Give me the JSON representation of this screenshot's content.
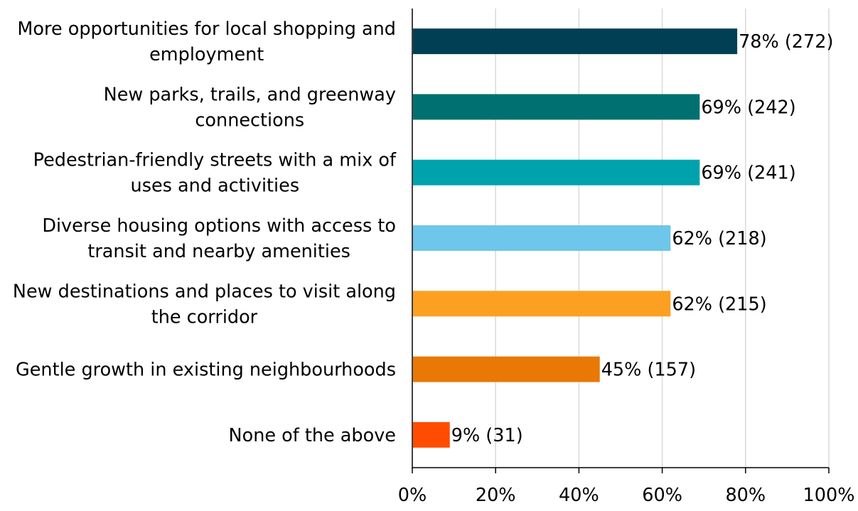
{
  "chart_data": {
    "type": "bar",
    "orientation": "horizontal",
    "title": "",
    "xlabel": "",
    "ylabel": "",
    "categories": [
      [
        "More opportunities for local shopping and",
        "employment"
      ],
      [
        "New parks, trails, and greenway",
        "connections"
      ],
      [
        "Pedestrian-friendly streets with a mix of",
        "uses and activities"
      ],
      [
        "Diverse housing options with access to",
        "transit and nearby amenities"
      ],
      [
        "New destinations and places to visit along",
        "the corridor"
      ],
      [
        "Gentle growth in existing neighbourhoods"
      ],
      [
        "None of the above"
      ]
    ],
    "values": [
      78,
      69,
      69,
      62,
      62,
      45,
      9
    ],
    "value_labels": [
      "78% (272)",
      "69% (242)",
      "69% (241)",
      "62% (218)",
      "62% (215)",
      "45% (157)",
      "9% (31)"
    ],
    "colors": [
      "#003f54",
      "#007170",
      "#00a3ad",
      "#6ec6ea",
      "#fca021",
      "#e97804",
      "#ff4c00"
    ],
    "xlim": [
      0,
      100
    ],
    "xticks": [
      0,
      20,
      40,
      60,
      80,
      100
    ],
    "xtick_labels": [
      "0%",
      "20%",
      "40%",
      "60%",
      "80%",
      "100%"
    ],
    "grid": true,
    "legend": "none"
  }
}
